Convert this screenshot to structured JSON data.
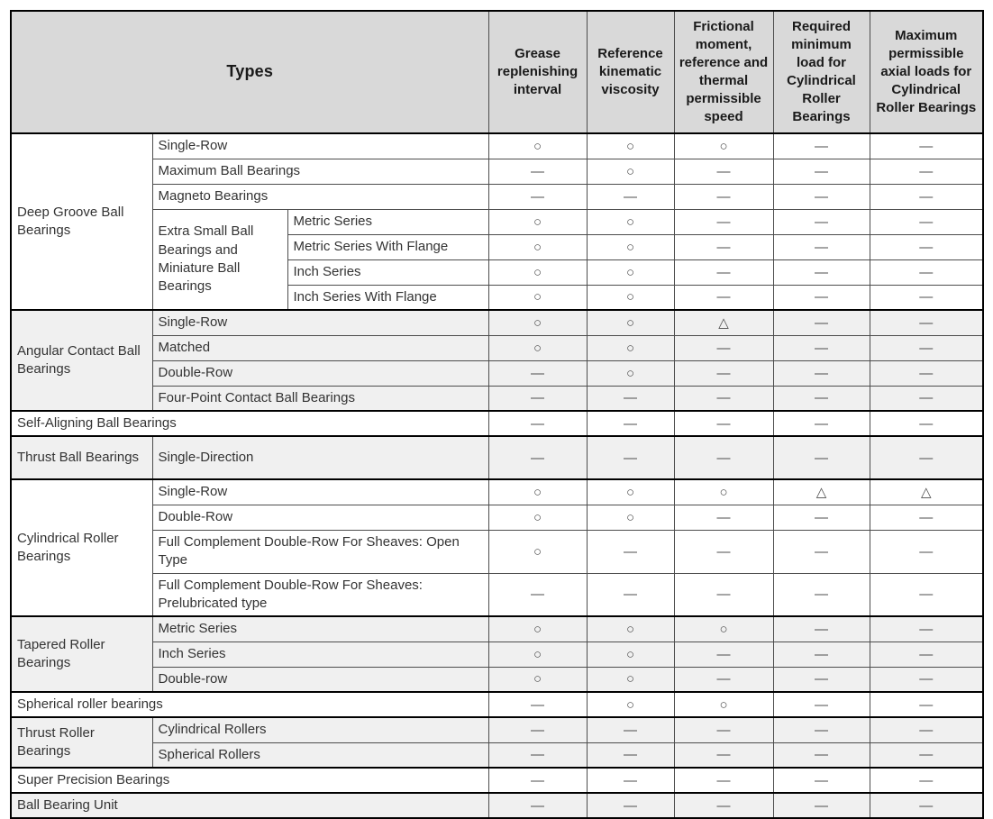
{
  "table": {
    "title": "Types",
    "columns": [
      "Grease replenishing interval",
      "Reference kinematic viscosity",
      "Frictional moment, reference and thermal permissible speed",
      "Required minimum load for Cylindrical Roller Bearings",
      "Maximum permissible axial loads for Cylindrical Roller Bearings"
    ],
    "symbols": {
      "applicable": "○",
      "conditionally_applicable": "△",
      "not_applicable": "—"
    },
    "colors": {
      "header_bg": "#d9d9d9",
      "shaded_section_bg": "#f0f0f0",
      "unshaded_section_bg": "#ffffff",
      "outer_border": "#000000",
      "inner_border": "#4d4d4d",
      "header_text": "#1a1a1a",
      "body_text": "#333333"
    },
    "rows": [
      {
        "section": "deep-groove-ball-bearings",
        "shade": false,
        "sep": true,
        "tall": false,
        "cells": [
          {
            "text": "Deep Groove Ball Bearings",
            "rowspan": 7,
            "type": "group"
          },
          {
            "text": "Single-Row",
            "colspan": 2,
            "type": "label"
          },
          {
            "text": "○",
            "type": "sym"
          },
          {
            "text": "○",
            "type": "sym"
          },
          {
            "text": "○",
            "type": "sym"
          },
          {
            "text": "—",
            "type": "sym"
          },
          {
            "text": "—",
            "type": "sym"
          }
        ]
      },
      {
        "section": "deep-groove-ball-bearings",
        "shade": false,
        "sep": false,
        "tall": false,
        "cells": [
          {
            "text": "Maximum Ball Bearings",
            "colspan": 2,
            "type": "label"
          },
          {
            "text": "—",
            "type": "sym"
          },
          {
            "text": "○",
            "type": "sym"
          },
          {
            "text": "—",
            "type": "sym"
          },
          {
            "text": "—",
            "type": "sym"
          },
          {
            "text": "—",
            "type": "sym"
          }
        ]
      },
      {
        "section": "deep-groove-ball-bearings",
        "shade": false,
        "sep": false,
        "tall": false,
        "cells": [
          {
            "text": "Magneto Bearings",
            "colspan": 2,
            "type": "label"
          },
          {
            "text": "—",
            "type": "sym"
          },
          {
            "text": "—",
            "type": "sym"
          },
          {
            "text": "—",
            "type": "sym"
          },
          {
            "text": "—",
            "type": "sym"
          },
          {
            "text": "—",
            "type": "sym"
          }
        ]
      },
      {
        "section": "deep-groove-ball-bearings",
        "shade": false,
        "sep": false,
        "tall": false,
        "cells": [
          {
            "text": "Extra Small Ball Bearings and Miniature Ball Bearings",
            "rowspan": 4,
            "type": "label"
          },
          {
            "text": "Metric Series",
            "type": "label"
          },
          {
            "text": "○",
            "type": "sym"
          },
          {
            "text": "○",
            "type": "sym"
          },
          {
            "text": "—",
            "type": "sym"
          },
          {
            "text": "—",
            "type": "sym"
          },
          {
            "text": "—",
            "type": "sym"
          }
        ]
      },
      {
        "section": "deep-groove-ball-bearings",
        "shade": false,
        "sep": false,
        "tall": false,
        "cells": [
          {
            "text": "Metric Series With Flange",
            "type": "label"
          },
          {
            "text": "○",
            "type": "sym"
          },
          {
            "text": "○",
            "type": "sym"
          },
          {
            "text": "—",
            "type": "sym"
          },
          {
            "text": "—",
            "type": "sym"
          },
          {
            "text": "—",
            "type": "sym"
          }
        ]
      },
      {
        "section": "deep-groove-ball-bearings",
        "shade": false,
        "sep": false,
        "tall": false,
        "cells": [
          {
            "text": "Inch Series",
            "type": "label"
          },
          {
            "text": "○",
            "type": "sym"
          },
          {
            "text": "○",
            "type": "sym"
          },
          {
            "text": "—",
            "type": "sym"
          },
          {
            "text": "—",
            "type": "sym"
          },
          {
            "text": "—",
            "type": "sym"
          }
        ]
      },
      {
        "section": "deep-groove-ball-bearings",
        "shade": false,
        "sep": false,
        "tall": false,
        "cells": [
          {
            "text": "Inch Series With Flange",
            "type": "label"
          },
          {
            "text": "○",
            "type": "sym"
          },
          {
            "text": "○",
            "type": "sym"
          },
          {
            "text": "—",
            "type": "sym"
          },
          {
            "text": "—",
            "type": "sym"
          },
          {
            "text": "—",
            "type": "sym"
          }
        ]
      },
      {
        "section": "angular-contact-ball-bearings",
        "shade": true,
        "sep": true,
        "tall": false,
        "cells": [
          {
            "text": "Angular Contact Ball Bearings",
            "rowspan": 4,
            "type": "group"
          },
          {
            "text": "Single-Row",
            "colspan": 2,
            "type": "label"
          },
          {
            "text": "○",
            "type": "sym"
          },
          {
            "text": "○",
            "type": "sym"
          },
          {
            "text": "△",
            "type": "sym"
          },
          {
            "text": "—",
            "type": "sym"
          },
          {
            "text": "—",
            "type": "sym"
          }
        ]
      },
      {
        "section": "angular-contact-ball-bearings",
        "shade": true,
        "sep": false,
        "tall": false,
        "cells": [
          {
            "text": "Matched",
            "colspan": 2,
            "type": "label"
          },
          {
            "text": "○",
            "type": "sym"
          },
          {
            "text": "○",
            "type": "sym"
          },
          {
            "text": "—",
            "type": "sym"
          },
          {
            "text": "—",
            "type": "sym"
          },
          {
            "text": "—",
            "type": "sym"
          }
        ]
      },
      {
        "section": "angular-contact-ball-bearings",
        "shade": true,
        "sep": false,
        "tall": false,
        "cells": [
          {
            "text": "Double-Row",
            "colspan": 2,
            "type": "label"
          },
          {
            "text": "—",
            "type": "sym"
          },
          {
            "text": "○",
            "type": "sym"
          },
          {
            "text": "—",
            "type": "sym"
          },
          {
            "text": "—",
            "type": "sym"
          },
          {
            "text": "—",
            "type": "sym"
          }
        ]
      },
      {
        "section": "angular-contact-ball-bearings",
        "shade": true,
        "sep": false,
        "tall": false,
        "cells": [
          {
            "text": "Four-Point Contact Ball Bearings",
            "colspan": 2,
            "type": "label"
          },
          {
            "text": "—",
            "type": "sym"
          },
          {
            "text": "—",
            "type": "sym"
          },
          {
            "text": "—",
            "type": "sym"
          },
          {
            "text": "—",
            "type": "sym"
          },
          {
            "text": "—",
            "type": "sym"
          }
        ]
      },
      {
        "section": "self-aligning-ball-bearings",
        "shade": false,
        "sep": true,
        "tall": false,
        "cells": [
          {
            "text": "Self-Aligning Ball Bearings",
            "colspan": 3,
            "type": "label"
          },
          {
            "text": "—",
            "type": "sym"
          },
          {
            "text": "—",
            "type": "sym"
          },
          {
            "text": "—",
            "type": "sym"
          },
          {
            "text": "—",
            "type": "sym"
          },
          {
            "text": "—",
            "type": "sym"
          }
        ]
      },
      {
        "section": "thrust-ball-bearings",
        "shade": true,
        "sep": true,
        "tall": true,
        "cells": [
          {
            "text": "Thrust Ball Bearings",
            "type": "group"
          },
          {
            "text": "Single-Direction",
            "colspan": 2,
            "type": "label"
          },
          {
            "text": "—",
            "type": "sym"
          },
          {
            "text": "—",
            "type": "sym"
          },
          {
            "text": "—",
            "type": "sym"
          },
          {
            "text": "—",
            "type": "sym"
          },
          {
            "text": "—",
            "type": "sym"
          }
        ]
      },
      {
        "section": "cylindrical-roller-bearings",
        "shade": false,
        "sep": true,
        "tall": false,
        "cells": [
          {
            "text": "Cylindrical Roller Bearings",
            "rowspan": 4,
            "type": "group"
          },
          {
            "text": "Single-Row",
            "colspan": 2,
            "type": "label"
          },
          {
            "text": "○",
            "type": "sym"
          },
          {
            "text": "○",
            "type": "sym"
          },
          {
            "text": "○",
            "type": "sym"
          },
          {
            "text": "△",
            "type": "sym"
          },
          {
            "text": "△",
            "type": "sym"
          }
        ]
      },
      {
        "section": "cylindrical-roller-bearings",
        "shade": false,
        "sep": false,
        "tall": false,
        "cells": [
          {
            "text": "Double-Row",
            "colspan": 2,
            "type": "label"
          },
          {
            "text": "○",
            "type": "sym"
          },
          {
            "text": "○",
            "type": "sym"
          },
          {
            "text": "—",
            "type": "sym"
          },
          {
            "text": "—",
            "type": "sym"
          },
          {
            "text": "—",
            "type": "sym"
          }
        ]
      },
      {
        "section": "cylindrical-roller-bearings",
        "shade": false,
        "sep": false,
        "tall": true,
        "cells": [
          {
            "text": "Full Complement Double-Row For Sheaves: Open Type",
            "colspan": 2,
            "type": "label"
          },
          {
            "text": "○",
            "type": "sym"
          },
          {
            "text": "—",
            "type": "sym"
          },
          {
            "text": "—",
            "type": "sym"
          },
          {
            "text": "—",
            "type": "sym"
          },
          {
            "text": "—",
            "type": "sym"
          }
        ]
      },
      {
        "section": "cylindrical-roller-bearings",
        "shade": false,
        "sep": false,
        "tall": true,
        "cells": [
          {
            "text": "Full Complement Double-Row For Sheaves: Prelubricated type",
            "colspan": 2,
            "type": "label"
          },
          {
            "text": "—",
            "type": "sym"
          },
          {
            "text": "—",
            "type": "sym"
          },
          {
            "text": "—",
            "type": "sym"
          },
          {
            "text": "—",
            "type": "sym"
          },
          {
            "text": "—",
            "type": "sym"
          }
        ]
      },
      {
        "section": "tapered-roller-bearings",
        "shade": true,
        "sep": true,
        "tall": false,
        "cells": [
          {
            "text": "Tapered Roller Bearings",
            "rowspan": 3,
            "type": "group"
          },
          {
            "text": "Metric Series",
            "colspan": 2,
            "type": "label"
          },
          {
            "text": "○",
            "type": "sym"
          },
          {
            "text": "○",
            "type": "sym"
          },
          {
            "text": "○",
            "type": "sym"
          },
          {
            "text": "—",
            "type": "sym"
          },
          {
            "text": "—",
            "type": "sym"
          }
        ]
      },
      {
        "section": "tapered-roller-bearings",
        "shade": true,
        "sep": false,
        "tall": false,
        "cells": [
          {
            "text": "Inch Series",
            "colspan": 2,
            "type": "label"
          },
          {
            "text": "○",
            "type": "sym"
          },
          {
            "text": "○",
            "type": "sym"
          },
          {
            "text": "—",
            "type": "sym"
          },
          {
            "text": "—",
            "type": "sym"
          },
          {
            "text": "—",
            "type": "sym"
          }
        ]
      },
      {
        "section": "tapered-roller-bearings",
        "shade": true,
        "sep": false,
        "tall": false,
        "cells": [
          {
            "text": "Double-row",
            "colspan": 2,
            "type": "label"
          },
          {
            "text": "○",
            "type": "sym"
          },
          {
            "text": "○",
            "type": "sym"
          },
          {
            "text": "—",
            "type": "sym"
          },
          {
            "text": "—",
            "type": "sym"
          },
          {
            "text": "—",
            "type": "sym"
          }
        ]
      },
      {
        "section": "spherical-roller-bearings",
        "shade": false,
        "sep": true,
        "tall": false,
        "cells": [
          {
            "text": "Spherical roller bearings",
            "colspan": 3,
            "type": "label"
          },
          {
            "text": "—",
            "type": "sym"
          },
          {
            "text": "○",
            "type": "sym"
          },
          {
            "text": "○",
            "type": "sym"
          },
          {
            "text": "—",
            "type": "sym"
          },
          {
            "text": "—",
            "type": "sym"
          }
        ]
      },
      {
        "section": "thrust-roller-bearings",
        "shade": true,
        "sep": true,
        "tall": false,
        "cells": [
          {
            "text": "Thrust Roller Bearings",
            "rowspan": 2,
            "type": "group"
          },
          {
            "text": "Cylindrical Rollers",
            "colspan": 2,
            "type": "label"
          },
          {
            "text": "—",
            "type": "sym"
          },
          {
            "text": "—",
            "type": "sym"
          },
          {
            "text": "—",
            "type": "sym"
          },
          {
            "text": "—",
            "type": "sym"
          },
          {
            "text": "—",
            "type": "sym"
          }
        ]
      },
      {
        "section": "thrust-roller-bearings",
        "shade": true,
        "sep": false,
        "tall": false,
        "cells": [
          {
            "text": "Spherical Rollers",
            "colspan": 2,
            "type": "label"
          },
          {
            "text": "—",
            "type": "sym"
          },
          {
            "text": "—",
            "type": "sym"
          },
          {
            "text": "—",
            "type": "sym"
          },
          {
            "text": "—",
            "type": "sym"
          },
          {
            "text": "—",
            "type": "sym"
          }
        ]
      },
      {
        "section": "super-precision-bearings",
        "shade": false,
        "sep": true,
        "tall": false,
        "cells": [
          {
            "text": "Super Precision Bearings",
            "colspan": 3,
            "type": "label"
          },
          {
            "text": "—",
            "type": "sym"
          },
          {
            "text": "—",
            "type": "sym"
          },
          {
            "text": "—",
            "type": "sym"
          },
          {
            "text": "—",
            "type": "sym"
          },
          {
            "text": "—",
            "type": "sym"
          }
        ]
      },
      {
        "section": "ball-bearing-unit",
        "shade": true,
        "sep": true,
        "tall": false,
        "cells": [
          {
            "text": "Ball Bearing Unit",
            "colspan": 3,
            "type": "label"
          },
          {
            "text": "—",
            "type": "sym"
          },
          {
            "text": "—",
            "type": "sym"
          },
          {
            "text": "—",
            "type": "sym"
          },
          {
            "text": "—",
            "type": "sym"
          },
          {
            "text": "—",
            "type": "sym"
          }
        ]
      }
    ]
  }
}
